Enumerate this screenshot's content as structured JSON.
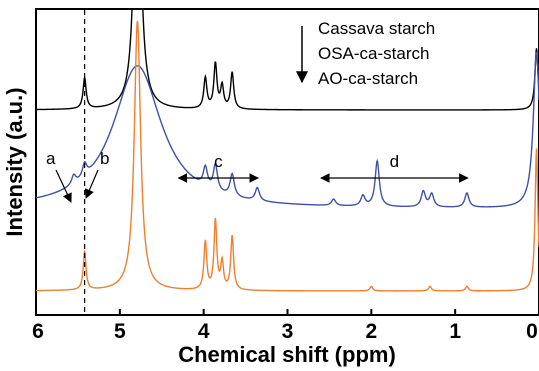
{
  "chart_data": {
    "type": "line",
    "xlabel": "Chemical shift (ppm)",
    "ylabel": "Intensity (a.u.)",
    "xlim": [
      6,
      0
    ],
    "x_reversed": true,
    "x_ticks": [
      "6",
      "5",
      "4",
      "3",
      "2",
      "1",
      "0"
    ],
    "y_ticks": [],
    "grid": false,
    "legend": {
      "placement": "top-right",
      "order_arrow": "down",
      "entries": [
        "Cassava starch",
        "OSA-ca-starch",
        "AO-ca-starch"
      ]
    },
    "reference_line": {
      "x": 5.42,
      "style": "dashed"
    },
    "annotations": [
      {
        "label": "a",
        "x": 5.5
      },
      {
        "label": "b",
        "x": 5.42
      },
      {
        "label": "c",
        "x_range": [
          4.3,
          3.35
        ]
      },
      {
        "label": "d",
        "x_range": [
          2.6,
          0.85
        ]
      }
    ],
    "series": [
      {
        "name": "Cassava starch",
        "color": "#000000",
        "peaks": [
          {
            "x": 5.42,
            "height": 0.22
          },
          {
            "x": 4.79,
            "height": 2.2
          },
          {
            "x": 3.98,
            "height": 0.22
          },
          {
            "x": 3.86,
            "height": 0.32
          },
          {
            "x": 3.78,
            "height": 0.16
          },
          {
            "x": 3.66,
            "height": 0.26
          },
          {
            "x": 0.03,
            "height": 0.44
          }
        ]
      },
      {
        "name": "OSA-ca-starch",
        "color": "#3f51a6",
        "peaks": [
          {
            "x": 5.55,
            "height": 0.07
          },
          {
            "x": 5.42,
            "height": 0.1
          },
          {
            "x": 3.98,
            "height": 0.15
          },
          {
            "x": 3.86,
            "height": 0.2
          },
          {
            "x": 3.66,
            "height": 0.17
          },
          {
            "x": 3.36,
            "height": 0.1
          },
          {
            "x": 2.45,
            "height": 0.05
          },
          {
            "x": 2.1,
            "height": 0.08
          },
          {
            "x": 1.93,
            "height": 0.35
          },
          {
            "x": 1.38,
            "height": 0.12
          },
          {
            "x": 1.28,
            "height": 0.1
          },
          {
            "x": 0.86,
            "height": 0.11
          },
          {
            "x": 0.03,
            "height": 1.2
          }
        ]
      },
      {
        "name": "AO-ca-starch",
        "color": "#f07f2f",
        "peaks": [
          {
            "x": 5.42,
            "height": 0.26
          },
          {
            "x": 4.79,
            "height": 1.8
          },
          {
            "x": 3.98,
            "height": 0.32
          },
          {
            "x": 3.86,
            "height": 0.46
          },
          {
            "x": 3.78,
            "height": 0.18
          },
          {
            "x": 3.66,
            "height": 0.36
          },
          {
            "x": 2.0,
            "height": 0.03
          },
          {
            "x": 1.3,
            "height": 0.03
          },
          {
            "x": 0.86,
            "height": 0.03
          },
          {
            "x": 0.03,
            "height": 0.95
          }
        ]
      }
    ]
  }
}
